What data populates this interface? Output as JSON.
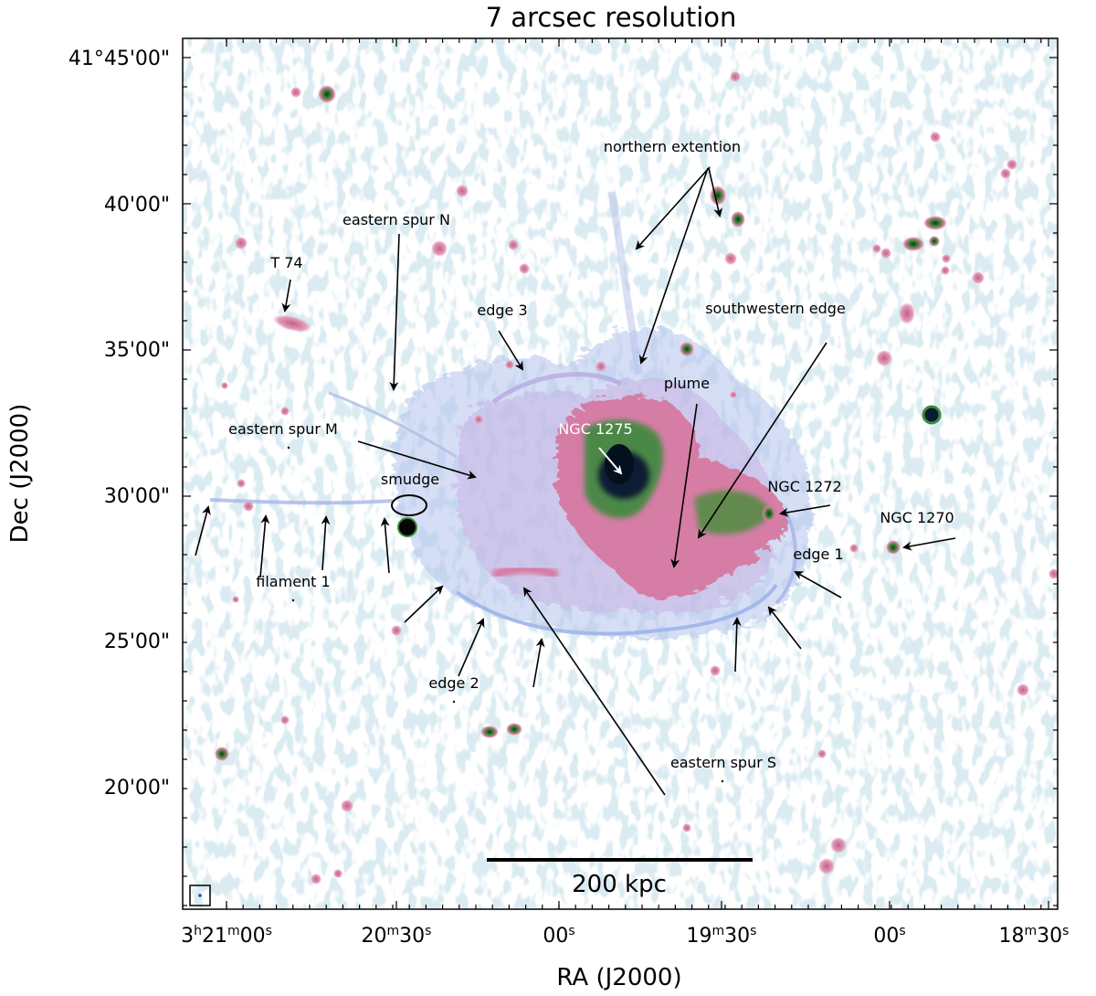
{
  "figure": {
    "title": "7 arcsec resolution",
    "xlabel": "RA (J2000)",
    "ylabel": "Dec (J2000)",
    "scalebar_label": "200 kpc",
    "dec_ticks": [
      "41°45'00\"",
      "40'00\"",
      "35'00\"",
      "30'00\"",
      "25'00\"",
      "20'00\""
    ],
    "ra_ticks": [
      {
        "h": "3",
        "hs": "h",
        "m": "21",
        "ms": "m",
        "s": "00",
        "ss": "s"
      },
      {
        "h": "",
        "hs": "",
        "m": "20",
        "ms": "m",
        "s": "30",
        "ss": "s"
      },
      {
        "h": "",
        "hs": "",
        "m": "",
        "ms": "",
        "s": "00",
        "ss": "s"
      },
      {
        "h": "",
        "hs": "",
        "m": "19",
        "ms": "m",
        "s": "30",
        "ss": "s"
      },
      {
        "h": "",
        "hs": "",
        "m": "",
        "ms": "",
        "s": "00",
        "ss": "s"
      },
      {
        "h": "",
        "hs": "",
        "m": "18",
        "ms": "m",
        "s": "30",
        "ss": "s"
      }
    ]
  },
  "annotations": {
    "northern_extention": "northern extention",
    "eastern_spur_n": "eastern spur N",
    "t74": "T 74",
    "edge3": "edge 3",
    "southwestern_edge": "southwestern edge",
    "plume": "plume",
    "ngc1275": "NGC 1275",
    "eastern_spur_m": "eastern spur M",
    "smudge": "smudge",
    "ngc1272": "NGC 1272",
    "ngc1270": "NGC 1270",
    "edge1": "edge 1",
    "filament1": "filament 1",
    "edge2": "edge 2",
    "eastern_spur_s": "eastern spur S"
  },
  "colors": {
    "background": "#ffffff",
    "noise": "#b9d6e2",
    "diffuse_blue": "#a9b9e8",
    "pink": "#d8789e",
    "green": "#3f8a3a",
    "core": "#0b1a33"
  }
}
